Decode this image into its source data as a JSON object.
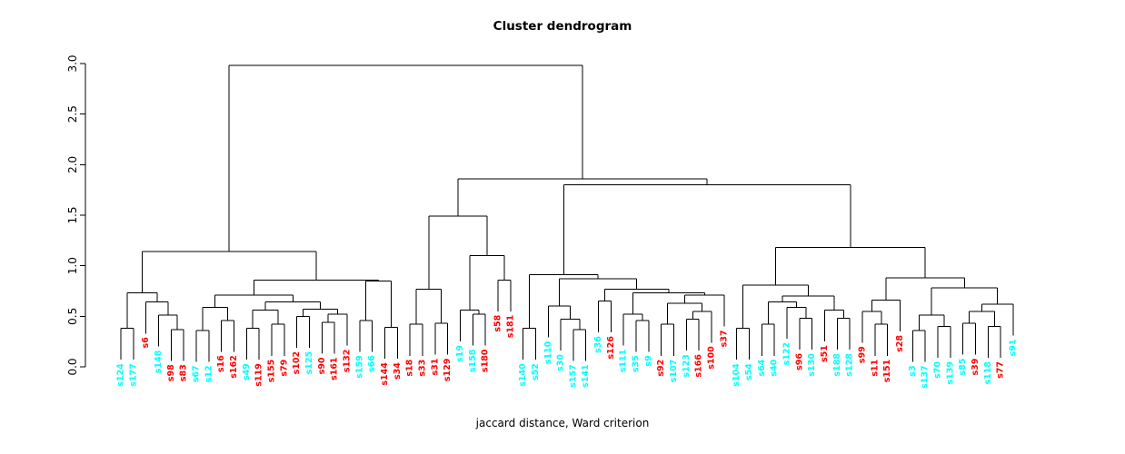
{
  "chart_data": {
    "type": "dendrogram",
    "title": "Cluster dendrogram",
    "xlabel": "jaccard distance, Ward criterion",
    "ylabel": "",
    "ylim": [
      0.0,
      3.0
    ],
    "yticks": [
      "0.0",
      "0.5",
      "1.0",
      "1.5",
      "2.0",
      "2.5",
      "3.0"
    ],
    "grid": false,
    "line_color": "#000000",
    "leaf_colors": {
      "cyan": "#00FFFF",
      "red": "#FF0000"
    },
    "hang": 0.31,
    "leaves": [
      {
        "label": "s124",
        "color": "cyan"
      },
      {
        "label": "s177",
        "color": "cyan"
      },
      {
        "label": "s6",
        "color": "red"
      },
      {
        "label": "s148",
        "color": "cyan"
      },
      {
        "label": "s98",
        "color": "red"
      },
      {
        "label": "s83",
        "color": "red"
      },
      {
        "label": "s67",
        "color": "cyan"
      },
      {
        "label": "s12",
        "color": "cyan"
      },
      {
        "label": "s16",
        "color": "red"
      },
      {
        "label": "s162",
        "color": "red"
      },
      {
        "label": "s49",
        "color": "cyan"
      },
      {
        "label": "s119",
        "color": "red"
      },
      {
        "label": "s155",
        "color": "red"
      },
      {
        "label": "s79",
        "color": "red"
      },
      {
        "label": "s102",
        "color": "red"
      },
      {
        "label": "s125",
        "color": "cyan"
      },
      {
        "label": "s90",
        "color": "red"
      },
      {
        "label": "s161",
        "color": "red"
      },
      {
        "label": "s132",
        "color": "red"
      },
      {
        "label": "s159",
        "color": "cyan"
      },
      {
        "label": "s66",
        "color": "cyan"
      },
      {
        "label": "s144",
        "color": "red"
      },
      {
        "label": "s34",
        "color": "red"
      },
      {
        "label": "s18",
        "color": "red"
      },
      {
        "label": "s33",
        "color": "red"
      },
      {
        "label": "s31",
        "color": "red"
      },
      {
        "label": "s129",
        "color": "red"
      },
      {
        "label": "s19",
        "color": "cyan"
      },
      {
        "label": "s158",
        "color": "cyan"
      },
      {
        "label": "s180",
        "color": "red"
      },
      {
        "label": "s58",
        "color": "red"
      },
      {
        "label": "s181",
        "color": "red"
      },
      {
        "label": "s140",
        "color": "cyan"
      },
      {
        "label": "s52",
        "color": "cyan"
      },
      {
        "label": "s110",
        "color": "cyan"
      },
      {
        "label": "s30",
        "color": "cyan"
      },
      {
        "label": "s157",
        "color": "cyan"
      },
      {
        "label": "s141",
        "color": "cyan"
      },
      {
        "label": "s36",
        "color": "cyan"
      },
      {
        "label": "s126",
        "color": "red"
      },
      {
        "label": "s111",
        "color": "cyan"
      },
      {
        "label": "s35",
        "color": "cyan"
      },
      {
        "label": "s9",
        "color": "cyan"
      },
      {
        "label": "s92",
        "color": "red"
      },
      {
        "label": "s107",
        "color": "cyan"
      },
      {
        "label": "s123",
        "color": "cyan"
      },
      {
        "label": "s166",
        "color": "red"
      },
      {
        "label": "s100",
        "color": "red"
      },
      {
        "label": "s37",
        "color": "red"
      },
      {
        "label": "s104",
        "color": "cyan"
      },
      {
        "label": "s54",
        "color": "cyan"
      },
      {
        "label": "s64",
        "color": "cyan"
      },
      {
        "label": "s40",
        "color": "cyan"
      },
      {
        "label": "s122",
        "color": "cyan"
      },
      {
        "label": "s96",
        "color": "red"
      },
      {
        "label": "s130",
        "color": "cyan"
      },
      {
        "label": "s51",
        "color": "red"
      },
      {
        "label": "s188",
        "color": "cyan"
      },
      {
        "label": "s128",
        "color": "cyan"
      },
      {
        "label": "s99",
        "color": "red"
      },
      {
        "label": "s11",
        "color": "red"
      },
      {
        "label": "s151",
        "color": "red"
      },
      {
        "label": "s28",
        "color": "red"
      },
      {
        "label": "s3",
        "color": "cyan"
      },
      {
        "label": "s137",
        "color": "cyan"
      },
      {
        "label": "s70",
        "color": "cyan"
      },
      {
        "label": "s139",
        "color": "cyan"
      },
      {
        "label": "s85",
        "color": "cyan"
      },
      {
        "label": "s39",
        "color": "red"
      },
      {
        "label": "s118",
        "color": "cyan"
      },
      {
        "label": "s77",
        "color": "red"
      },
      {
        "label": "s91",
        "color": "cyan"
      }
    ],
    "tree": [
      [
        [
          [
            "s124",
            "s177",
            0.38
          ],
          [
            "s6",
            [
              "s148",
              [
                "s98",
                "s83",
                0.37
              ],
              0.51
            ],
            0.64
          ],
          0.73
        ],
        [
          [
            [
              [
                "s67",
                "s12",
                0.36
              ],
              [
                "s16",
                "s162",
                0.46
              ],
              0.59
            ],
            [
              [
                [
                  "s49",
                  "s119",
                  0.38
                ],
                [
                  "s155",
                  "s79",
                  0.42
                ],
                0.56
              ],
              [
                [
                  "s102",
                  "s125",
                  0.5
                ],
                [
                  [
                    "s90",
                    "s161",
                    0.44
                  ],
                  "s132",
                  0.52
                ],
                0.57
              ],
              0.64
            ],
            0.71
          ],
          [
            [
              "s159",
              "s66",
              0.46
            ],
            [
              "s144",
              "s34",
              0.39
            ],
            0.85
          ],
          0.86
        ],
        1.14
      ],
      [
        [
          [
            [
              "s18",
              "s33",
              0.42
            ],
            [
              "s31",
              "s129",
              0.43
            ],
            0.77
          ],
          [
            [
              "s19",
              [
                "s158",
                "s180",
                0.52
              ],
              0.56
            ],
            [
              "s58",
              "s181",
              0.86
            ],
            1.1
          ],
          1.49
        ],
        [
          [
            [
              "s140",
              "s52",
              0.38
            ],
            [
              [
                "s110",
                [
                  "s30",
                  [
                    "s157",
                    "s141",
                    0.37
                  ],
                  0.47
                ],
                0.6
              ],
              [
                [
                  "s36",
                  "s126",
                  0.65
                ],
                [
                  [
                    "s111",
                    [
                      "s35",
                      "s9",
                      0.46
                    ],
                    0.52
                  ],
                  [
                    [
                      [
                        "s92",
                        "s107",
                        0.42
                      ],
                      [
                        [
                          "s123",
                          "s166",
                          0.47
                        ],
                        "s100",
                        0.55
                      ],
                      0.63
                    ],
                    "s37",
                    0.71
                  ],
                  0.73
                ],
                0.77
              ],
              0.87
            ],
            0.91
          ],
          [
            [
              [
                "s104",
                "s54",
                0.38
              ],
              [
                [
                  [
                    "s64",
                    "s40",
                    0.42
                  ],
                  [
                    "s122",
                    [
                      "s96",
                      "s130",
                      0.48
                    ],
                    0.59
                  ],
                  0.64
                ],
                [
                  "s51",
                  [
                    "s188",
                    "s128",
                    0.48
                  ],
                  0.56
                ],
                0.7
              ],
              0.81
            ],
            [
              [
                [
                  "s99",
                  [
                    "s11",
                    "s151",
                    0.42
                  ],
                  0.55
                ],
                "s28",
                0.66
              ],
              [
                [
                  [
                    "s3",
                    "s137",
                    0.36
                  ],
                  [
                    "s70",
                    "s139",
                    0.4
                  ],
                  0.51
                ],
                [
                  [
                    [
                      "s85",
                      "s39",
                      0.43
                    ],
                    [
                      "s118",
                      "s77",
                      0.4
                    ],
                    0.55
                  ],
                  "s91",
                  0.62
                ],
                0.78
              ],
              0.88
            ],
            1.18
          ],
          1.8
        ],
        1.86
      ],
      2.98
    ]
  }
}
